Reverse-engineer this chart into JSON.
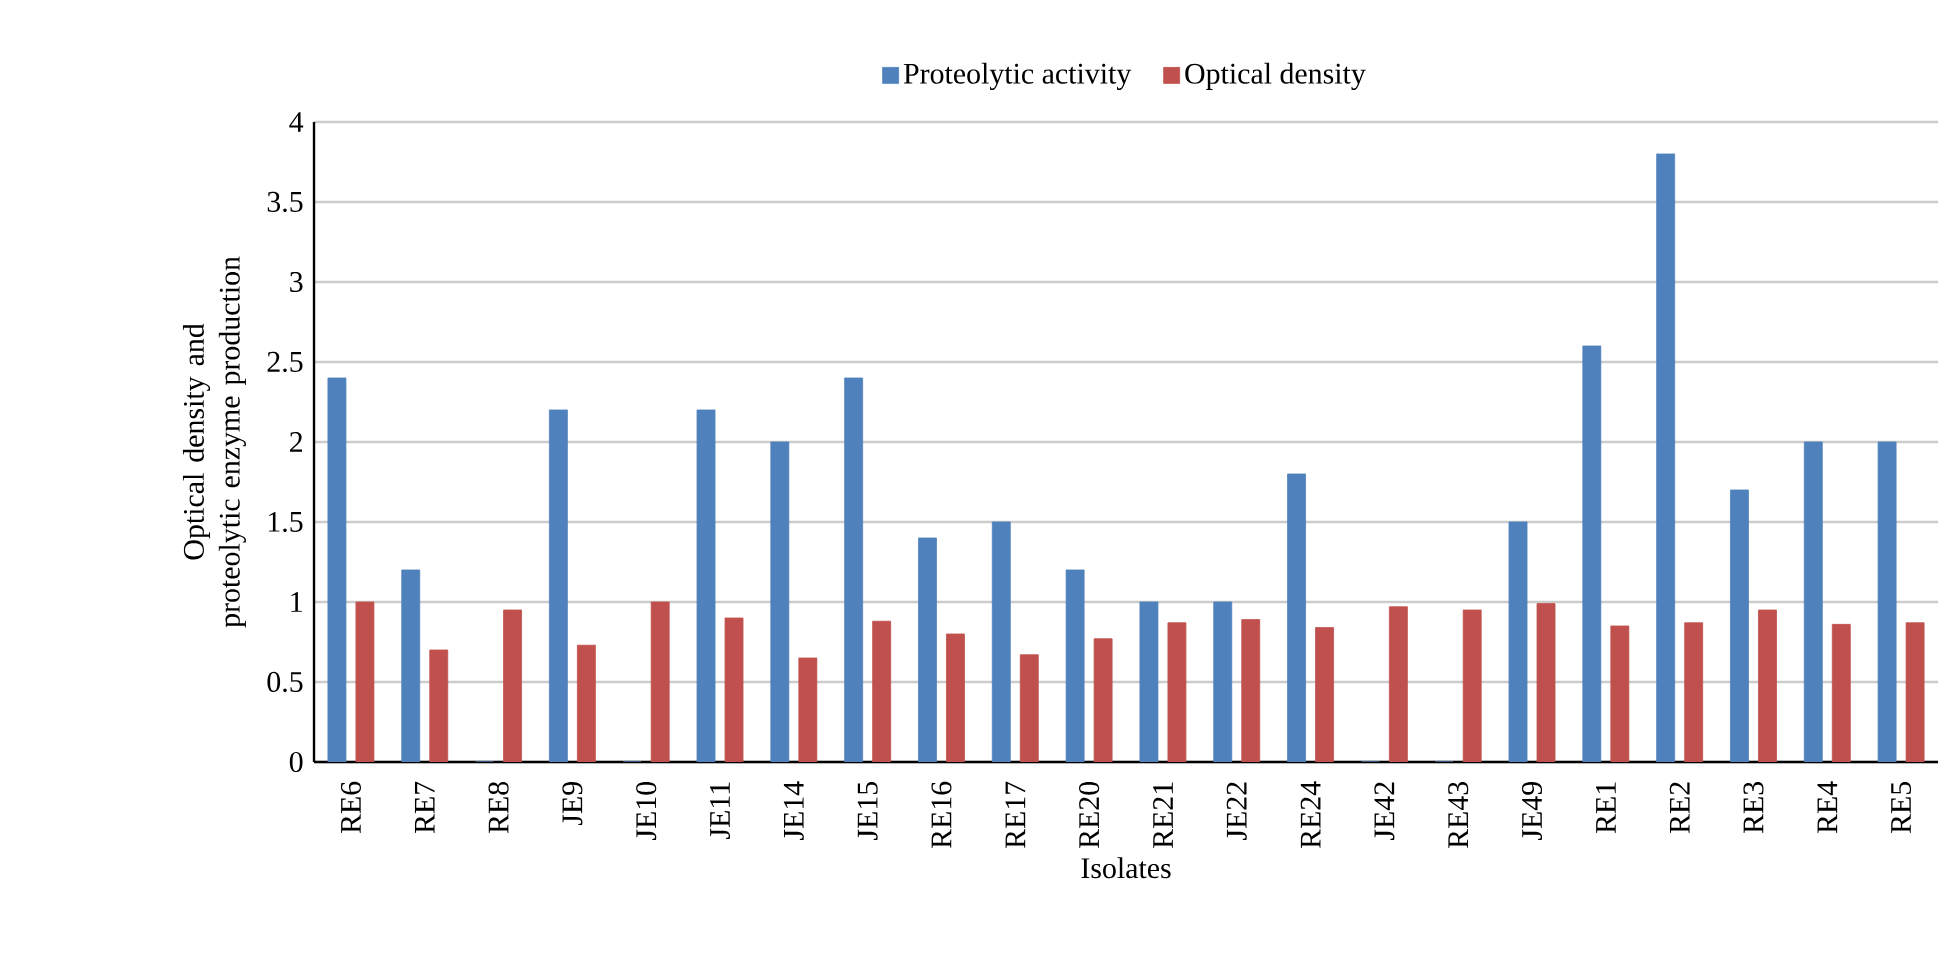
{
  "chart_data": {
    "type": "bar",
    "xlabel": "Isolates",
    "ylabel": "Optical density and  proteolytic enzyme production",
    "categories": [
      "RE6",
      "RE7",
      "RE8",
      "JE9",
      "JE10",
      "JE11",
      "JE14",
      "JE15",
      "RE16",
      "RE17",
      "RE20",
      "RE21",
      "JE22",
      "RE24",
      "JE42",
      "RE43",
      "JE49",
      "RE1",
      "RE2",
      "RE3",
      "RE4",
      "RE5"
    ],
    "series": [
      {
        "name": "Proteolytic activity",
        "color": "#4f81bd",
        "values": [
          2.4,
          1.2,
          0,
          2.2,
          0,
          2.2,
          2.0,
          2.4,
          1.4,
          1.5,
          1.2,
          1.0,
          1.0,
          1.8,
          0,
          0,
          1.5,
          2.6,
          3.8,
          1.7,
          2.0,
          2.0
        ]
      },
      {
        "name": "Optical density",
        "color": "#c0504d",
        "values": [
          1.0,
          0.7,
          0.95,
          0.73,
          1.0,
          0.9,
          0.65,
          0.88,
          0.8,
          0.67,
          0.77,
          0.87,
          0.89,
          0.84,
          0.97,
          0.95,
          0.99,
          0.85,
          0.87,
          0.95,
          0.86,
          0.87
        ]
      }
    ],
    "ylim": [
      0,
      4
    ],
    "yticks": [
      0,
      0.5,
      1,
      1.5,
      2,
      2.5,
      3,
      3.5,
      4
    ],
    "grid": "y",
    "legend": "top"
  }
}
